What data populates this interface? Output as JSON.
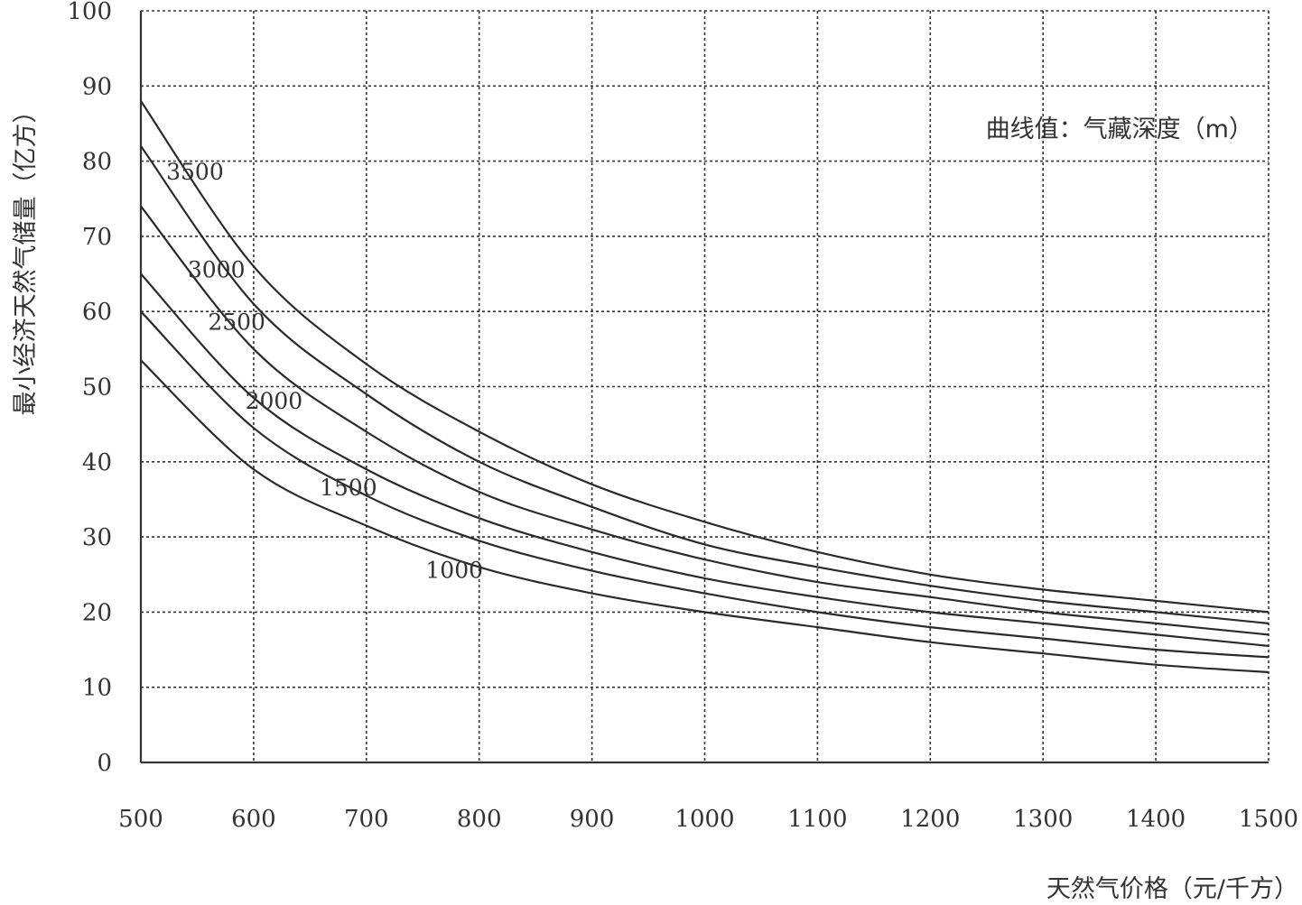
{
  "chart_data": {
    "type": "line",
    "xlabel": "天然气价格（元/千方）",
    "ylabel": "最小经济天然气储量（亿方）",
    "annotation": "曲线值：气藏深度（m）",
    "xlim": [
      500,
      1500
    ],
    "ylim": [
      0,
      100
    ],
    "x_ticks": [
      500,
      600,
      700,
      800,
      900,
      1000,
      1100,
      1200,
      1300,
      1400,
      1500
    ],
    "y_ticks": [
      0,
      10,
      20,
      30,
      40,
      50,
      60,
      70,
      80,
      90,
      100
    ],
    "x_tick_labels": [
      "500",
      "600",
      "700",
      "800",
      "900",
      "1000",
      "1100",
      "1200",
      "1300",
      "1400",
      "1500"
    ],
    "y_tick_labels": [
      "0",
      "10",
      "20",
      "30",
      "40",
      "50",
      "60",
      "70",
      "80",
      "90",
      "100"
    ],
    "grid": true,
    "x": [
      500,
      600,
      700,
      800,
      900,
      1000,
      1100,
      1200,
      1300,
      1400,
      1500
    ],
    "series": [
      {
        "name": "3500",
        "values": [
          88,
          66,
          53,
          44,
          37,
          32,
          28,
          25,
          23,
          21.5,
          20
        ]
      },
      {
        "name": "3000",
        "values": [
          82,
          61,
          49,
          40,
          34,
          29,
          26,
          23.5,
          21.5,
          20,
          18.5
        ]
      },
      {
        "name": "2500",
        "values": [
          74,
          55,
          44,
          36,
          31,
          27,
          24,
          22,
          20,
          18.5,
          17
        ]
      },
      {
        "name": "2000",
        "values": [
          65,
          48.5,
          39,
          32.5,
          28,
          24.5,
          22,
          20,
          18.5,
          17,
          15.5
        ]
      },
      {
        "name": "1500",
        "values": [
          60,
          44.5,
          35.5,
          29.5,
          25.5,
          22.5,
          20,
          18,
          16.5,
          15,
          14
        ]
      },
      {
        "name": "1000",
        "values": [
          53.5,
          39,
          31.5,
          26,
          22.5,
          20,
          18,
          16,
          14.5,
          13,
          12
        ]
      }
    ],
    "curve_labels": [
      {
        "series": "3500",
        "x": 548,
        "y": 78.5
      },
      {
        "series": "3000",
        "x": 567,
        "y": 65.5
      },
      {
        "series": "2500",
        "x": 585,
        "y": 58.5
      },
      {
        "series": "2000",
        "x": 618,
        "y": 48
      },
      {
        "series": "1500",
        "x": 684,
        "y": 36.5
      },
      {
        "series": "1000",
        "x": 778,
        "y": 25.5
      }
    ]
  }
}
